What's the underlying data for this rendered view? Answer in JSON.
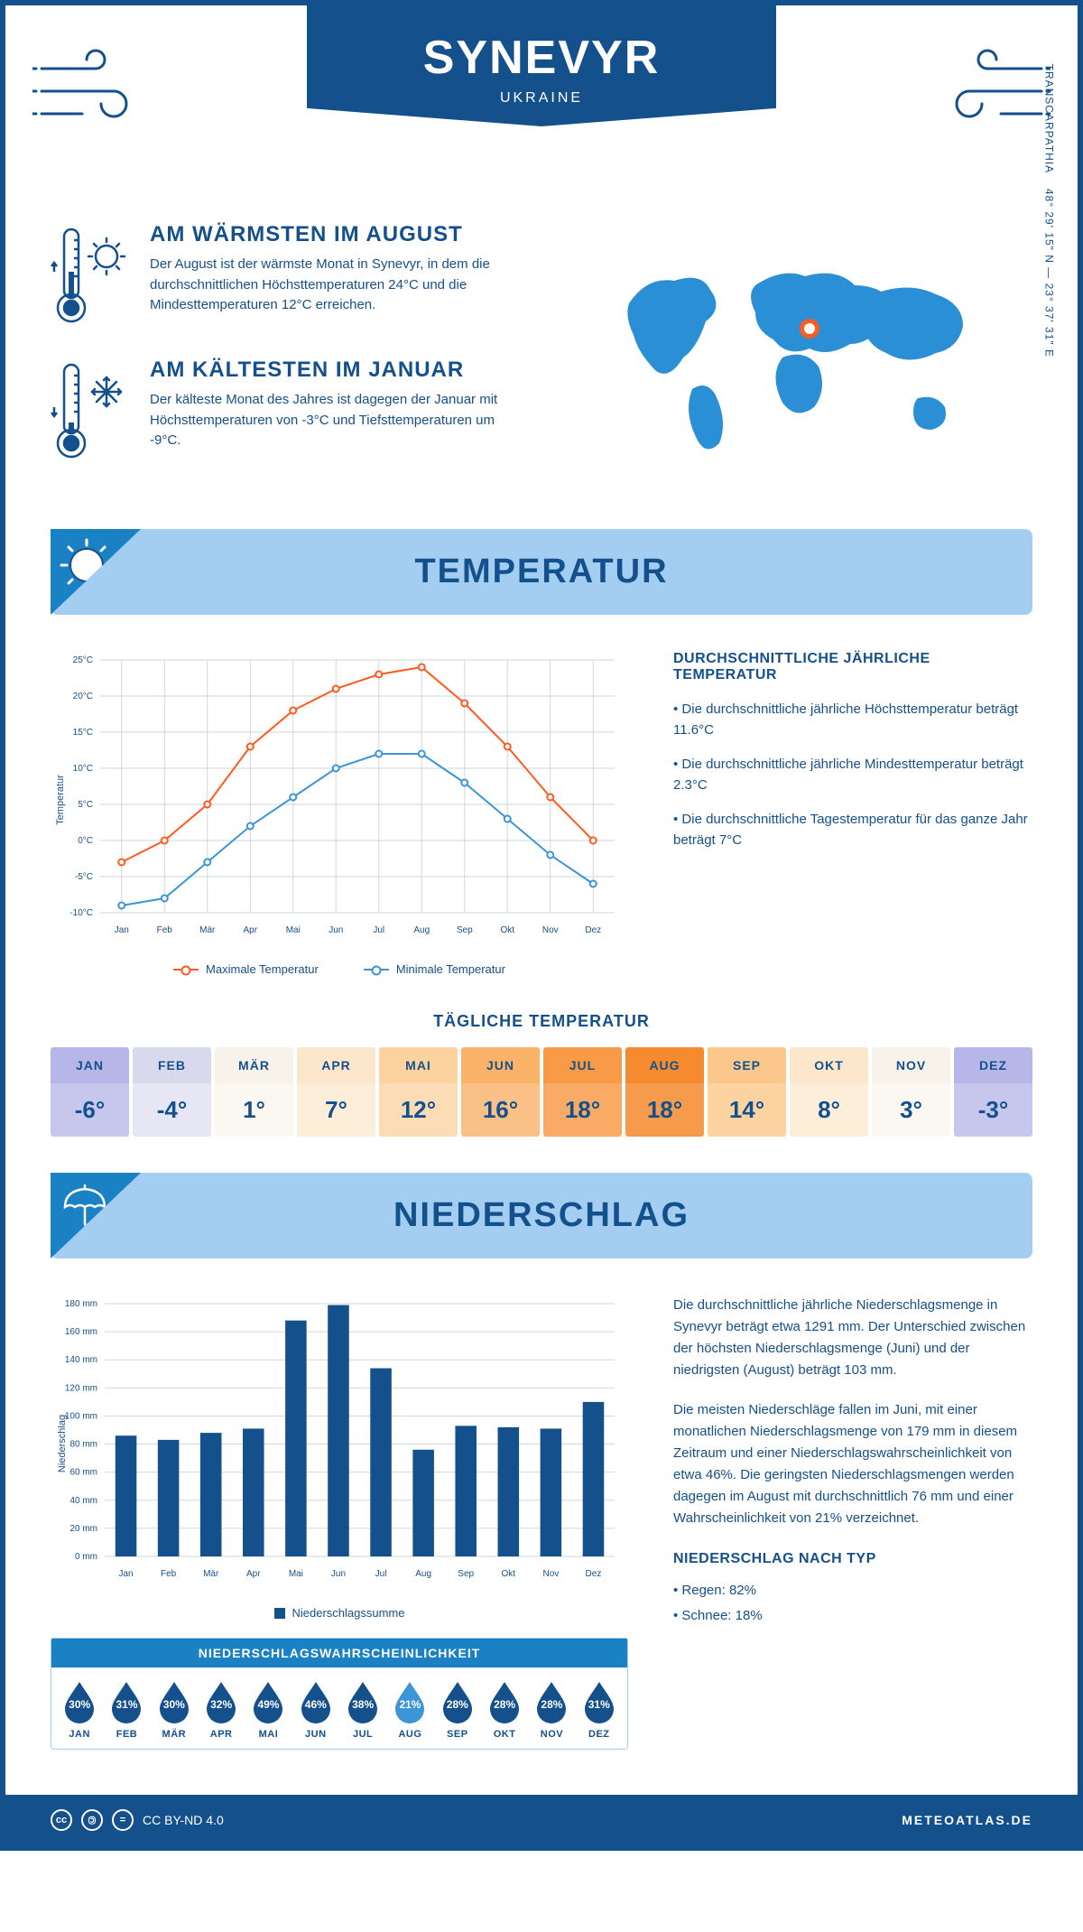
{
  "header": {
    "title": "SYNEVYR",
    "subtitle": "UKRAINE"
  },
  "intro": {
    "warm": {
      "title": "AM WÄRMSTEN IM AUGUST",
      "text": "Der August ist der wärmste Monat in Synevyr, in dem die durchschnittlichen Höchsttemperaturen 24°C und die Mindesttemperaturen 12°C erreichen."
    },
    "cold": {
      "title": "AM KÄLTESTEN IM JANUAR",
      "text": "Der kälteste Monat des Jahres ist dagegen der Januar mit Höchsttemperaturen von -3°C und Tiefsttemperaturen um -9°C."
    },
    "coords": "48° 29' 15\" N — 23° 37' 31\" E",
    "region": "TRANSCARPATHIA",
    "marker_pos": {
      "left_pct": 51,
      "top_pct": 32
    }
  },
  "sections": {
    "temperature": "TEMPERATUR",
    "precip": "NIEDERSCHLAG"
  },
  "temp_chart": {
    "type": "line",
    "months": [
      "Jan",
      "Feb",
      "Mär",
      "Apr",
      "Mai",
      "Jun",
      "Jul",
      "Aug",
      "Sep",
      "Okt",
      "Nov",
      "Dez"
    ],
    "max_series": [
      -3,
      0,
      5,
      13,
      18,
      21,
      23,
      24,
      19,
      13,
      6,
      0
    ],
    "min_series": [
      -9,
      -8,
      -3,
      2,
      6,
      10,
      12,
      12,
      8,
      3,
      -2,
      -6
    ],
    "ylim": [
      -10,
      25
    ],
    "ytick_step": 5,
    "ylabel": "Temperatur",
    "max_color": "#ff5a1f",
    "min_color": "#3b95d6",
    "grid_color": "#d0d7de",
    "bg": "#ffffff",
    "legend_max": "Maximale Temperatur",
    "legend_min": "Minimale Temperatur",
    "line_width": 2,
    "marker_r": 3.5
  },
  "temp_desc": {
    "title": "DURCHSCHNITTLICHE JÄHRLICHE TEMPERATUR",
    "bullets": [
      "• Die durchschnittliche jährliche Höchsttemperatur beträgt 11.6°C",
      "• Die durchschnittliche jährliche Mindesttemperatur beträgt 2.3°C",
      "• Die durchschnittliche Tagestemperatur für das ganze Jahr beträgt 7°C"
    ]
  },
  "daily": {
    "title": "TÄGLICHE TEMPERATUR",
    "months": [
      "JAN",
      "FEB",
      "MÄR",
      "APR",
      "MAI",
      "JUN",
      "JUL",
      "AUG",
      "SEP",
      "OKT",
      "NOV",
      "DEZ"
    ],
    "values": [
      "-6°",
      "-4°",
      "1°",
      "7°",
      "12°",
      "16°",
      "18°",
      "18°",
      "14°",
      "8°",
      "3°",
      "-3°"
    ],
    "head_colors": [
      "#b6b6e8",
      "#d9d9ee",
      "#f7f3ea",
      "#fde7cc",
      "#fcd29f",
      "#fbb36a",
      "#f89a46",
      "#f58a2e",
      "#fcc78a",
      "#fde7cc",
      "#f7f3ea",
      "#b6b6e8"
    ],
    "val_colors": [
      "#c7c7ee",
      "#e6e6f4",
      "#fbf8f1",
      "#fdeed9",
      "#fcdcb6",
      "#fbc086",
      "#f9aa64",
      "#f69b4c",
      "#fcd3a1",
      "#fdeed9",
      "#fbf8f1",
      "#c7c7ee"
    ],
    "text_color": "#14508c"
  },
  "precip_chart": {
    "type": "bar",
    "months": [
      "Jan",
      "Feb",
      "Mär",
      "Apr",
      "Mai",
      "Jun",
      "Jul",
      "Aug",
      "Sep",
      "Okt",
      "Nov",
      "Dez"
    ],
    "values": [
      86,
      83,
      88,
      91,
      168,
      179,
      134,
      76,
      93,
      92,
      91,
      110
    ],
    "ylim": [
      0,
      180
    ],
    "ytick_step": 20,
    "unit": "mm",
    "ylabel": "Niederschlag",
    "bar_color": "#14508c",
    "grid_color": "#d0d7de",
    "legend": "Niederschlagssumme",
    "bar_width": 0.5
  },
  "prob": {
    "title": "NIEDERSCHLAGSWAHRSCHEINLICHKEIT",
    "months": [
      "JAN",
      "FEB",
      "MÄR",
      "APR",
      "MAI",
      "JUN",
      "JUL",
      "AUG",
      "SEP",
      "OKT",
      "NOV",
      "DEZ"
    ],
    "values": [
      "30%",
      "31%",
      "30%",
      "32%",
      "49%",
      "46%",
      "38%",
      "21%",
      "28%",
      "28%",
      "28%",
      "31%"
    ],
    "dark": "#14508c",
    "light": "#3b95d6",
    "min_index": 7
  },
  "precip_desc": {
    "p1": "Die durchschnittliche jährliche Niederschlagsmenge in Synevyr beträgt etwa 1291 mm. Der Unterschied zwischen der höchsten Niederschlagsmenge (Juni) und der niedrigsten (August) beträgt 103 mm.",
    "p2": "Die meisten Niederschläge fallen im Juni, mit einer monatlichen Niederschlagsmenge von 179 mm in diesem Zeitraum und einer Niederschlagswahrscheinlichkeit von etwa 46%. Die geringsten Niederschlagsmengen werden dagegen im August mit durchschnittlich 76 mm und einer Wahrscheinlichkeit von 21% verzeichnet.",
    "type_title": "NIEDERSCHLAG NACH TYP",
    "type_items": [
      "• Regen: 82%",
      "• Schnee: 18%"
    ]
  },
  "footer": {
    "license": "CC BY-ND 4.0",
    "brand": "METEOATLAS.DE"
  },
  "colors": {
    "primary": "#14508c",
    "accent": "#1b81c5",
    "light": "#a3cef1",
    "orange": "#ff5a1f"
  }
}
